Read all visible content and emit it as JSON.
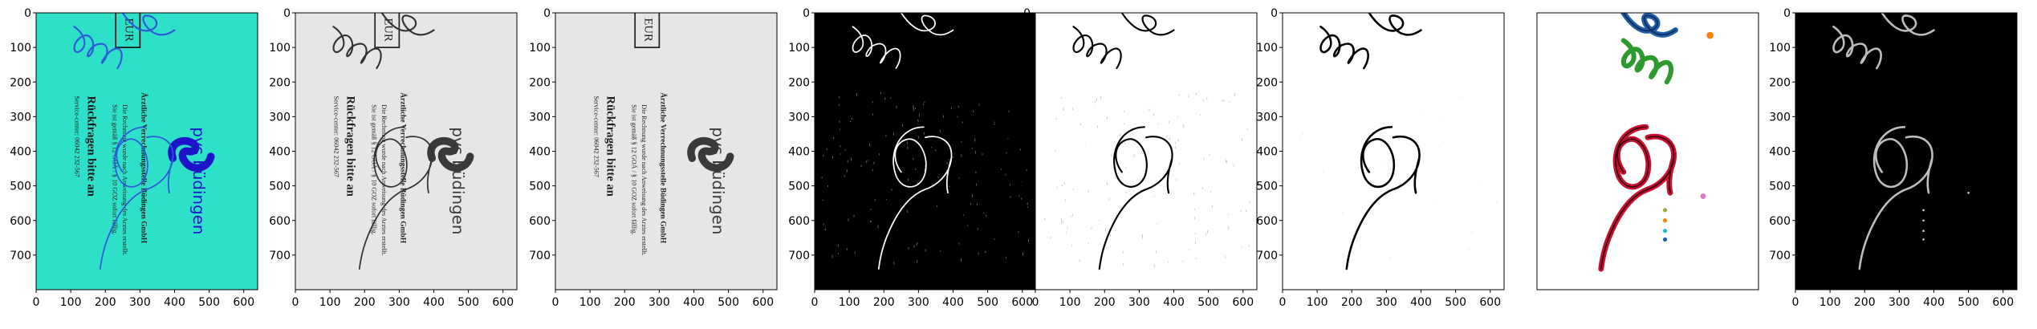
{
  "figure": {
    "panels": [
      {
        "id": "p1",
        "kind": "doc-color"
      },
      {
        "id": "p2",
        "kind": "doc-gray"
      },
      {
        "id": "p3",
        "kind": "doc-clean"
      },
      {
        "id": "p4",
        "kind": "mask-dark"
      },
      {
        "id": "p5",
        "kind": "mask-light-noisy"
      },
      {
        "id": "p6",
        "kind": "mask-light"
      },
      {
        "id": "p7",
        "kind": "components"
      },
      {
        "id": "p8",
        "kind": "skeleton-dark"
      }
    ],
    "yticks": [
      "0",
      "100",
      "200",
      "300",
      "400",
      "500",
      "600",
      "700"
    ],
    "xticks": [
      "0",
      "100",
      "200",
      "300",
      "400",
      "500",
      "600"
    ]
  },
  "document": {
    "box_text": "EUR",
    "company_line": "Ärztliche Verrechnungsstelle Büdingen GmbH",
    "body_line1": "Die Rechnung wurde nach Anweisung des Arztes erstellt.",
    "body_line2": "Sie ist gemäß § 12 GOÄ / § 10 GOZ sofort fällig.",
    "heading": "Rückfragen bitte an",
    "service": "Service-center: 06042 232-567",
    "logo_word": "pvs büdingen"
  },
  "colors": {
    "cyan_bg": "#2ee0c8",
    "gray_bg": "#e6e6e6",
    "blue_ink": "#2f57d9",
    "logo_blue": "#1d14c9",
    "comp_red": "#c8102e",
    "comp_blue": "#1f5fa8",
    "comp_green": "#2e9a2e",
    "comp_orange": "#ff7f0e",
    "comp_pink": "#e377c2",
    "comp_olive": "#a6a63a",
    "comp_cyan": "#17becf"
  }
}
